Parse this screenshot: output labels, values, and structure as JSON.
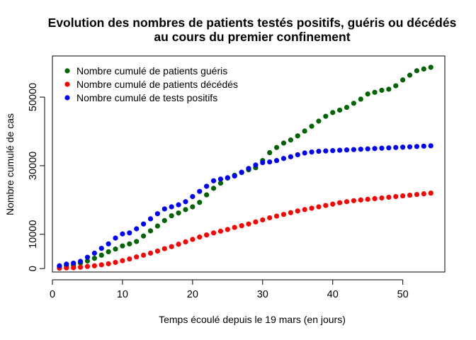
{
  "chart_data": {
    "type": "scatter",
    "title_line1": "Evolution des nombres de patients testés positifs, guéris ou décédés",
    "title_line2": "au cours du premier confinement",
    "xlabel": "Temps écoulé depuis le 19 mars (en jours)",
    "ylabel": "Nombre cumulé de cas",
    "xlim": [
      0,
      56
    ],
    "ylim": [
      -1000,
      62000
    ],
    "xticks": [
      0,
      10,
      20,
      30,
      40,
      50
    ],
    "yticks": [
      0,
      10000,
      30000,
      50000
    ],
    "ytick_labels": [
      "0",
      "10000",
      "30000",
      "50000"
    ],
    "legend_position": "top-left",
    "x": [
      1,
      2,
      3,
      4,
      5,
      6,
      7,
      8,
      9,
      10,
      11,
      12,
      13,
      14,
      15,
      16,
      17,
      18,
      19,
      20,
      21,
      22,
      23,
      24,
      25,
      26,
      27,
      28,
      29,
      30,
      31,
      32,
      33,
      34,
      35,
      36,
      37,
      38,
      39,
      40,
      41,
      42,
      43,
      44,
      45,
      46,
      47,
      48,
      49,
      50,
      51,
      52,
      53,
      54
    ],
    "series": [
      {
        "name": "Nombre cumulé de patients guéris",
        "color": "#006400",
        "values": [
          600,
          800,
          1000,
          1600,
          2200,
          3000,
          3900,
          4900,
          5700,
          6600,
          7200,
          7900,
          9500,
          11000,
          12400,
          14000,
          15400,
          16200,
          17200,
          18000,
          19300,
          21500,
          23400,
          24900,
          26400,
          27200,
          28000,
          28800,
          29400,
          31500,
          33800,
          35300,
          36600,
          37500,
          38700,
          40100,
          41500,
          43000,
          44400,
          45500,
          46200,
          47000,
          48200,
          49400,
          50900,
          51400,
          52000,
          52300,
          53300,
          55000,
          56400,
          57700,
          58200,
          58700
        ]
      },
      {
        "name": "Nombre cumulé de patients décédés",
        "color": "#FF0000",
        "values": [
          100,
          200,
          250,
          400,
          600,
          800,
          1100,
          1400,
          1800,
          2300,
          2800,
          3400,
          3900,
          4500,
          5100,
          5800,
          6400,
          7100,
          7800,
          8500,
          9200,
          9800,
          10400,
          10900,
          11400,
          12000,
          12500,
          13000,
          13600,
          14200,
          14800,
          15300,
          15800,
          16300,
          16800,
          17200,
          17600,
          18000,
          18400,
          18800,
          19200,
          19500,
          19800,
          20000,
          20200,
          20400,
          20600,
          20800,
          21000,
          21200,
          21400,
          21600,
          21800,
          22000
        ]
      },
      {
        "name": "Nombre cumulé de tests positifs",
        "color": "#0000FF",
        "values": [
          800,
          1300,
          1600,
          2100,
          3300,
          4500,
          5900,
          7200,
          8900,
          10100,
          10400,
          11600,
          13000,
          14500,
          16000,
          17400,
          18000,
          18600,
          19500,
          21000,
          22500,
          24000,
          25600,
          26100,
          26500,
          27000,
          28100,
          29200,
          30200,
          30900,
          31100,
          31500,
          32100,
          32600,
          33200,
          33700,
          34000,
          34200,
          34300,
          34400,
          34500,
          34600,
          34700,
          34800,
          34900,
          35000,
          35100,
          35200,
          35300,
          35400,
          35500,
          35600,
          35700,
          35800
        ]
      }
    ]
  }
}
